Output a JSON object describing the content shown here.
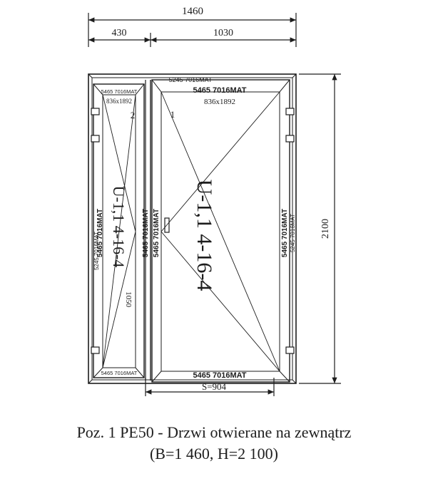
{
  "dimensions": {
    "total_width": "1460",
    "left_width": "430",
    "right_width": "1030",
    "height": "2100",
    "s_label": "S=904"
  },
  "frame": {
    "top_profile": "5245 7016MAT",
    "left_profile": "5245 7016MAT",
    "right_profile": "5245 7016MAT"
  },
  "sash_left": {
    "number": "2",
    "top_profile": "5465 7016MAT",
    "size": "836x1892",
    "bottom_profile": "5465 7016MAT",
    "left_profile": "5465 7016MAT",
    "mid_profile": "5465 7016MAT",
    "mid_profile_2": "5465 7016MAT",
    "glass": "U-1,1 4-16-4",
    "glass_size": "1050"
  },
  "sash_right": {
    "number": "1",
    "top_profile": "5465 7016MAT",
    "size": "836x1892",
    "bottom_profile": "5465 7016MAT",
    "right_profile": "5465 7016MAT",
    "glass": "U-1,1 4-16-4"
  },
  "caption": {
    "line1": "Poz. 1  PE50 - Drzwi otwierane na zewnątrz",
    "line2": "(B=1 460, H=2 100)"
  },
  "colors": {
    "ink": "#1d1d1d",
    "paper": "#ffffff"
  }
}
